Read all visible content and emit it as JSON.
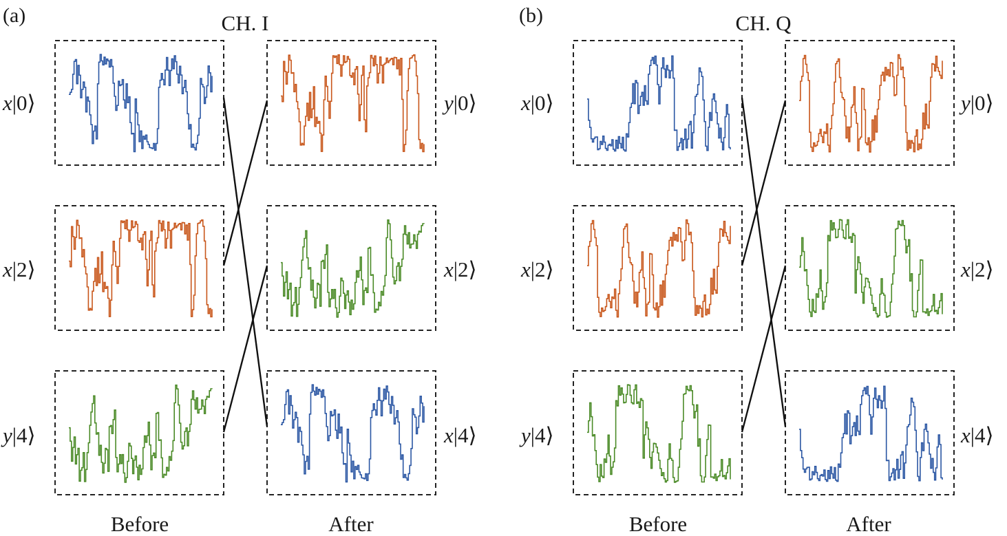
{
  "colors": {
    "blue": "#2a56a3",
    "orange": "#c8561a",
    "green": "#4a8a26"
  },
  "panels": [
    {
      "letter": "(a)",
      "title": "CH. I",
      "before_label": "Before",
      "after_label": "After",
      "before": [
        {
          "var": "x",
          "ket": "|0⟩",
          "color": "blue"
        },
        {
          "var": "x",
          "ket": "|2⟩",
          "color": "orange"
        },
        {
          "var": "y",
          "ket": "|4⟩",
          "color": "green"
        }
      ],
      "after": [
        {
          "var": "y",
          "ket": "|0⟩",
          "color": "orange"
        },
        {
          "var": "x",
          "ket": "|2⟩",
          "color": "green"
        },
        {
          "var": "x",
          "ket": "|4⟩",
          "color": "blue"
        }
      ],
      "mapping": [
        2,
        0,
        1
      ]
    },
    {
      "letter": "(b)",
      "title": "CH. Q",
      "before_label": "Before",
      "after_label": "After",
      "before": [
        {
          "var": "x",
          "ket": "|0⟩",
          "color": "blue"
        },
        {
          "var": "x",
          "ket": "|2⟩",
          "color": "orange"
        },
        {
          "var": "y",
          "ket": "|4⟩",
          "color": "green"
        }
      ],
      "after": [
        {
          "var": "y",
          "ket": "|0⟩",
          "color": "orange"
        },
        {
          "var": "x",
          "ket": "|2⟩",
          "color": "green"
        },
        {
          "var": "x",
          "ket": "|4⟩",
          "color": "blue"
        }
      ],
      "mapping": [
        2,
        0,
        1
      ]
    }
  ]
}
